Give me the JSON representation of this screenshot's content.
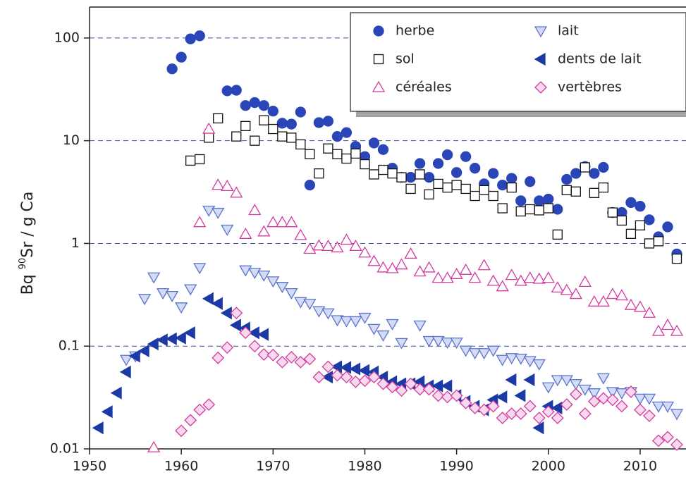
{
  "chart_data": {
    "type": "scatter",
    "ylabel": [
      "Bq ",
      "90",
      "Sr / g Ca"
    ],
    "xlim": [
      1950,
      2015
    ],
    "xticks": [
      1950,
      1960,
      1970,
      1980,
      1990,
      2000,
      2010
    ],
    "ylim": [
      0.01,
      200
    ],
    "yticks": [
      100,
      10,
      1,
      0.1,
      0.01
    ],
    "log_y": true,
    "grid": true,
    "legend": "top-right",
    "series": [
      {
        "name": "herbe",
        "marker": "circle",
        "color": "#2a45b8",
        "fill": "#2a45b8",
        "x": [
          1959,
          1960,
          1961,
          1962,
          1965,
          1966,
          1967,
          1968,
          1969,
          1970,
          1971,
          1972,
          1973,
          1974,
          1975,
          1976,
          1977,
          1978,
          1979,
          1980,
          1981,
          1982,
          1983,
          1984,
          1985,
          1986,
          1987,
          1988,
          1989,
          1990,
          1991,
          1992,
          1993,
          1994,
          1995,
          1996,
          1997,
          1998,
          1999,
          2000,
          2001,
          2002,
          2003,
          2004,
          2005,
          2006,
          2007,
          2008,
          2009,
          2010,
          2011,
          2012,
          2013,
          2014
        ],
        "values": [
          50,
          65,
          98,
          105,
          30.6,
          31,
          22,
          23.5,
          22,
          19.4,
          14.8,
          14.5,
          19,
          3.7,
          15,
          15.5,
          11,
          12,
          8.8,
          7,
          9.5,
          8.2,
          5.4,
          4.4,
          4.4,
          6,
          4.4,
          6,
          7.3,
          4.9,
          7,
          5.4,
          3.8,
          4.8,
          3.7,
          4.3,
          2.6,
          4,
          2.6,
          2.7,
          2.15,
          4.2,
          4.8,
          5.6,
          4.8,
          5.5,
          2,
          2,
          2.5,
          2.3,
          1.7,
          1.16,
          1.45,
          0.79
        ]
      },
      {
        "name": "sol",
        "marker": "square",
        "color": "#111111",
        "fill": "#ffffff",
        "x": [
          1961,
          1962,
          1963,
          1964,
          1966,
          1967,
          1968,
          1969,
          1970,
          1971,
          1972,
          1973,
          1974,
          1975,
          1976,
          1977,
          1978,
          1979,
          1980,
          1981,
          1982,
          1983,
          1984,
          1985,
          1986,
          1987,
          1988,
          1989,
          1990,
          1991,
          1992,
          1993,
          1994,
          1995,
          1996,
          1997,
          1998,
          1999,
          2000,
          2001,
          2002,
          2003,
          2004,
          2005,
          2006,
          2007,
          2008,
          2009,
          2010,
          2011,
          2012,
          2014
        ],
        "values": [
          6.4,
          6.6,
          10.7,
          16.5,
          11,
          13.9,
          10,
          15.8,
          13,
          11,
          10.7,
          9.2,
          7.4,
          4.8,
          8.4,
          7.4,
          6.7,
          7.5,
          5.9,
          4.7,
          5.2,
          4.8,
          4.4,
          3.4,
          4.7,
          3,
          3.8,
          3.5,
          3.7,
          3.4,
          2.9,
          3.3,
          2.9,
          2.2,
          3.5,
          2.05,
          2.15,
          2.1,
          2.2,
          1.22,
          3.3,
          3.2,
          5.5,
          3.1,
          3.5,
          2,
          1.67,
          1.24,
          1.5,
          1,
          1.05,
          0.71
        ]
      },
      {
        "name": "céréales",
        "marker": "triangle-up",
        "color": "#d23c9e",
        "fill": "#ffffff",
        "x": [
          1957,
          1962,
          1963,
          1964,
          1965,
          1966,
          1967,
          1968,
          1969,
          1970,
          1971,
          1972,
          1973,
          1974,
          1975,
          1976,
          1977,
          1978,
          1979,
          1980,
          1981,
          1982,
          1983,
          1984,
          1985,
          1986,
          1987,
          1988,
          1989,
          1990,
          1991,
          1992,
          1993,
          1994,
          1995,
          1996,
          1997,
          1998,
          1999,
          2000,
          2001,
          2002,
          2003,
          2004,
          2005,
          2006,
          2007,
          2008,
          2009,
          2010,
          2011,
          2012,
          2013,
          2014
        ],
        "values": [
          0.0103,
          1.6,
          13,
          3.7,
          3.6,
          3.1,
          1.23,
          2.1,
          1.3,
          1.6,
          1.6,
          1.6,
          1.2,
          0.88,
          0.95,
          0.94,
          0.91,
          1.08,
          0.94,
          0.81,
          0.67,
          0.58,
          0.57,
          0.62,
          0.79,
          0.53,
          0.58,
          0.46,
          0.46,
          0.5,
          0.55,
          0.46,
          0.61,
          0.43,
          0.38,
          0.49,
          0.43,
          0.46,
          0.45,
          0.46,
          0.37,
          0.35,
          0.32,
          0.42,
          0.27,
          0.27,
          0.32,
          0.31,
          0.25,
          0.24,
          0.21,
          0.14,
          0.16,
          0.14
        ]
      },
      {
        "name": "lait",
        "marker": "triangle-down",
        "color": "#5c74c9",
        "fill": "#d3dbf6",
        "x": [
          1954,
          1955,
          1956,
          1957,
          1958,
          1959,
          1960,
          1961,
          1962,
          1963,
          1964,
          1965,
          1967,
          1968,
          1969,
          1970,
          1971,
          1972,
          1973,
          1974,
          1975,
          1976,
          1977,
          1978,
          1979,
          1980,
          1981,
          1982,
          1983,
          1984,
          1986,
          1987,
          1988,
          1989,
          1990,
          1991,
          1992,
          1993,
          1994,
          1995,
          1996,
          1997,
          1998,
          1999,
          2000,
          2001,
          2002,
          2003,
          2004,
          2005,
          2006,
          2007,
          2008,
          2009,
          2010,
          2011,
          2012,
          2013,
          2014
        ],
        "values": [
          0.074,
          0.08,
          0.29,
          0.47,
          0.33,
          0.31,
          0.24,
          0.36,
          0.58,
          2.1,
          2,
          1.37,
          0.55,
          0.52,
          0.49,
          0.43,
          0.38,
          0.33,
          0.27,
          0.26,
          0.22,
          0.21,
          0.18,
          0.176,
          0.176,
          0.19,
          0.148,
          0.128,
          0.165,
          0.108,
          0.16,
          0.113,
          0.113,
          0.109,
          0.109,
          0.091,
          0.086,
          0.086,
          0.091,
          0.074,
          0.077,
          0.076,
          0.072,
          0.067,
          0.04,
          0.047,
          0.047,
          0.043,
          0.038,
          0.035,
          0.049,
          0.036,
          0.035,
          0.036,
          0.031,
          0.031,
          0.026,
          0.026,
          0.022
        ]
      },
      {
        "name": "dents de lait",
        "marker": "triangle-left",
        "color": "#1c3aa6",
        "fill": "#1c3aa6",
        "x": [
          1951,
          1952,
          1953,
          1954,
          1955,
          1956,
          1957,
          1958,
          1959,
          1960,
          1961,
          1963,
          1964,
          1965,
          1966,
          1967,
          1968,
          1969,
          1976,
          1977,
          1978,
          1979,
          1980,
          1981,
          1982,
          1983,
          1984,
          1985,
          1986,
          1987,
          1988,
          1989,
          1990,
          1991,
          1992,
          1993,
          1994,
          1995,
          1996,
          1997,
          1998,
          1999,
          2000,
          2001
        ],
        "values": [
          0.016,
          0.023,
          0.035,
          0.056,
          0.08,
          0.09,
          0.105,
          0.115,
          0.118,
          0.12,
          0.135,
          0.29,
          0.26,
          0.21,
          0.16,
          0.15,
          0.135,
          0.13,
          0.05,
          0.063,
          0.062,
          0.06,
          0.058,
          0.056,
          0.05,
          0.045,
          0.043,
          0.043,
          0.045,
          0.041,
          0.041,
          0.041,
          0.033,
          0.029,
          0.026,
          0.024,
          0.03,
          0.032,
          0.047,
          0.033,
          0.047,
          0.016,
          0.026,
          0.025
        ]
      },
      {
        "name": "vertèbres",
        "marker": "diamond",
        "color": "#d23c9e",
        "fill": "#f8d8ee",
        "x": [
          1960,
          1961,
          1962,
          1963,
          1964,
          1965,
          1966,
          1967,
          1968,
          1969,
          1970,
          1971,
          1972,
          1973,
          1974,
          1975,
          1976,
          1977,
          1978,
          1979,
          1980,
          1981,
          1982,
          1983,
          1984,
          1985,
          1986,
          1987,
          1988,
          1989,
          1990,
          1991,
          1992,
          1993,
          1994,
          1995,
          1996,
          1997,
          1998,
          1999,
          2000,
          2001,
          2002,
          2003,
          2004,
          2005,
          2006,
          2007,
          2008,
          2009,
          2010,
          2011,
          2012,
          2013,
          2014
        ],
        "values": [
          0.015,
          0.019,
          0.024,
          0.027,
          0.077,
          0.097,
          0.21,
          0.135,
          0.1,
          0.083,
          0.082,
          0.07,
          0.078,
          0.07,
          0.075,
          0.05,
          0.063,
          0.052,
          0.05,
          0.045,
          0.046,
          0.05,
          0.043,
          0.04,
          0.037,
          0.043,
          0.038,
          0.038,
          0.033,
          0.032,
          0.033,
          0.028,
          0.025,
          0.024,
          0.026,
          0.02,
          0.022,
          0.022,
          0.026,
          0.02,
          0.023,
          0.02,
          0.027,
          0.034,
          0.022,
          0.029,
          0.031,
          0.03,
          0.026,
          0.036,
          0.024,
          0.021,
          0.012,
          0.013,
          0.011
        ]
      }
    ]
  }
}
